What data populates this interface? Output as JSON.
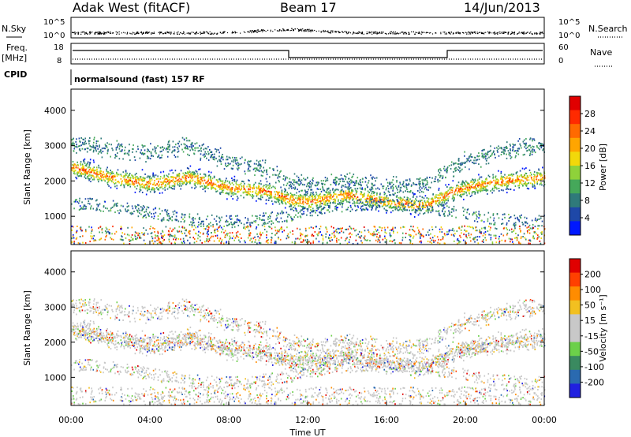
{
  "header": {
    "radar": "Adak West (fitACF)",
    "beam": "Beam 17",
    "date": "14/Jun/2013"
  },
  "status_panel": {
    "nsky_label": "N.Sky",
    "nsearch_label": "N.Search",
    "noise_ticks": [
      "10^5",
      "10^0"
    ],
    "freq_label": "Freq.",
    "freq_unit": "[MHz]",
    "freq_ticks": [
      "18",
      "8"
    ],
    "nave_label": "Nave",
    "nave_ticks": [
      "60",
      "0"
    ],
    "cpid_label": "CPID",
    "cpid_value": "normalsound (fast) 157 RF"
  },
  "colors": {
    "power_scale": [
      "#0018ff",
      "#1e48a8",
      "#2f7a7a",
      "#45a85a",
      "#8fd23a",
      "#f2d80a",
      "#ffa500",
      "#ff6a00",
      "#ff2a00",
      "#e00000"
    ],
    "velocity_scale": [
      "#2020e0",
      "#2a6ab0",
      "#3a8a60",
      "#6cd04a",
      "#c8c8c8",
      "#c8c8c8",
      "#f2c020",
      "#ff8c00",
      "#ff4000",
      "#e00000"
    ]
  },
  "chart_data": [
    {
      "type": "heatmap",
      "panel": "power",
      "xlabel": "",
      "ylabel": "Slant Range [km]",
      "x_ticks": [
        "00:00",
        "04:00",
        "08:00",
        "12:00",
        "16:00",
        "20:00",
        "00:00"
      ],
      "y_ticks": [
        "1000",
        "2000",
        "3000",
        "4000"
      ],
      "xlim_hours": [
        0,
        24
      ],
      "ylim_km": [
        200,
        4600
      ],
      "colorbar_label": "Power [dB]",
      "colorbar_ticks": [
        "28",
        "24",
        "20",
        "16",
        "12",
        "8",
        "4"
      ],
      "scatter_bands": [
        {
          "t": 0,
          "r": 2400
        },
        {
          "t": 2,
          "r": 2100
        },
        {
          "t": 4,
          "r": 1900
        },
        {
          "t": 6,
          "r": 2100
        },
        {
          "t": 8,
          "r": 1800
        },
        {
          "t": 10,
          "r": 1700
        },
        {
          "t": 11,
          "r": 1500
        },
        {
          "t": 12,
          "r": 1400
        },
        {
          "t": 14,
          "r": 1600
        },
        {
          "t": 16,
          "r": 1400
        },
        {
          "t": 18,
          "r": 1300
        },
        {
          "t": 19,
          "r": 1600
        },
        {
          "t": 20,
          "r": 1800
        },
        {
          "t": 22,
          "r": 2000
        },
        {
          "t": 24,
          "r": 2100
        }
      ]
    },
    {
      "type": "heatmap",
      "panel": "velocity",
      "xlabel": "Time UT",
      "ylabel": "Slant Range [km]",
      "x_ticks": [
        "00:00",
        "04:00",
        "08:00",
        "12:00",
        "16:00",
        "20:00",
        "00:00"
      ],
      "y_ticks": [
        "1000",
        "2000",
        "3000",
        "4000"
      ],
      "xlim_hours": [
        0,
        24
      ],
      "ylim_km": [
        200,
        4600
      ],
      "colorbar_label": "Velocity [m s⁻¹]",
      "colorbar_ticks": [
        "200",
        "100",
        "50",
        "15",
        "-15",
        "-50",
        "-100",
        "-200"
      ]
    }
  ]
}
